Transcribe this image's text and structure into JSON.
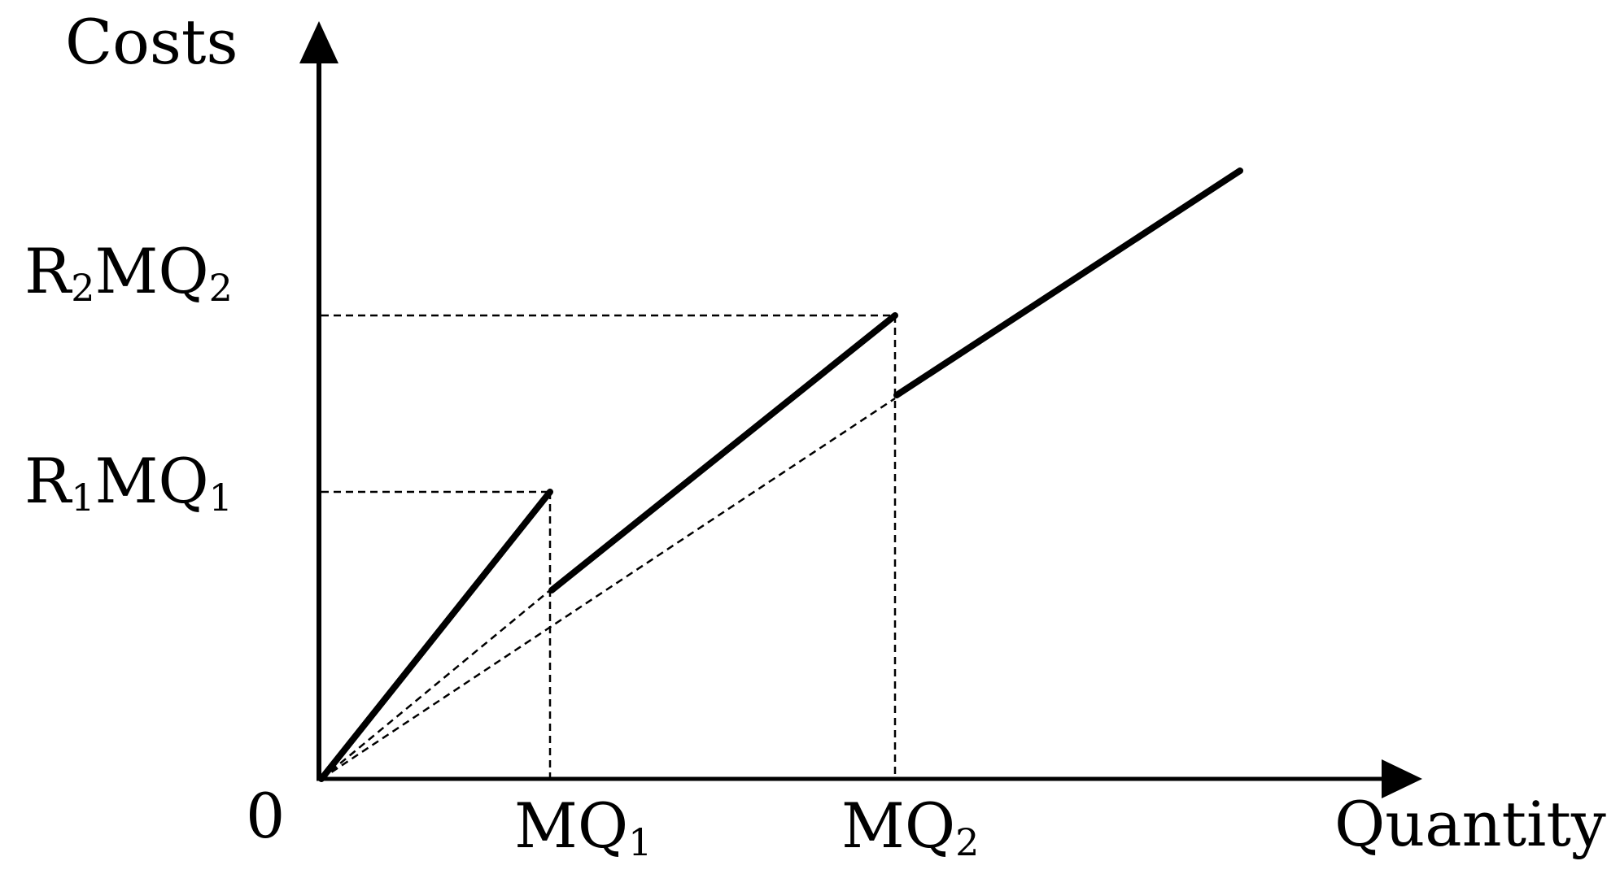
{
  "axes": {
    "y_label": "Costs",
    "x_label": "Quantity",
    "origin_label": "0"
  },
  "x_ticks": {
    "mq1": {
      "main": "MQ",
      "sub": "1"
    },
    "mq2": {
      "main": "MQ",
      "sub": "2"
    }
  },
  "y_ticks": {
    "r1mq1": {
      "r": "R",
      "r_sub": "1",
      "mq": "MQ",
      "mq_sub": "1"
    },
    "r2mq2": {
      "r": "R",
      "r_sub": "2",
      "mq": "MQ",
      "mq_sub": "2"
    }
  },
  "colors": {
    "ink": "#000000",
    "background": "#ffffff"
  }
}
